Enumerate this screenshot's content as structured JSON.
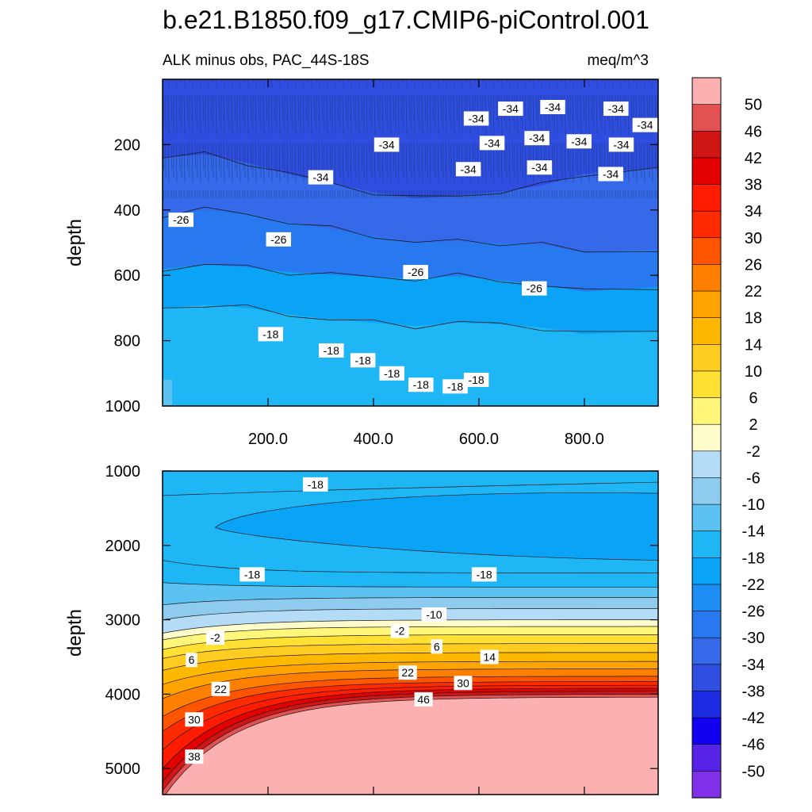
{
  "figure": {
    "title": "b.e21.B1850.f09_g17.CMIP6-piControl.001",
    "subtitle_left": "ALK minus obs, PAC_44S-18S",
    "subtitle_right": "meq/m^3"
  },
  "chart_data": [
    {
      "type": "contour",
      "panel": "upper",
      "ylabel": "depth",
      "xlabel": "",
      "ylim": [
        1000,
        0
      ],
      "xlim": [
        0,
        940
      ],
      "y_ticks": [
        200,
        400,
        600,
        800,
        1000
      ],
      "x_ticks": [
        "200.0",
        "400.0",
        "600.0",
        "800.0"
      ],
      "x_tick_values": [
        200,
        400,
        600,
        800
      ],
      "contours": [
        {
          "level": -18,
          "depth": [
            700,
            690,
            700,
            720,
            735,
            745,
            755,
            745,
            750,
            760,
            780,
            770
          ]
        },
        {
          "level": -26,
          "depth": [
            580,
            568,
            575,
            590,
            598,
            605,
            610,
            602,
            615,
            630,
            650,
            635
          ]
        },
        {
          "level": -30,
          "depth": [
            415,
            400,
            410,
            438,
            458,
            478,
            500,
            496,
            500,
            505,
            530,
            520
          ]
        },
        {
          "level": -34,
          "depth": [
            240,
            230,
            255,
            290,
            320,
            345,
            365,
            355,
            345,
            325,
            290,
            270
          ]
        }
      ],
      "x_nodes": [
        0,
        80,
        160,
        240,
        320,
        400,
        480,
        560,
        640,
        720,
        800,
        940
      ],
      "contour_labels": [
        {
          "text": "-34",
          "x": 300,
          "y": 300
        },
        {
          "text": "-34",
          "x": 425,
          "y": 200
        },
        {
          "text": "-34",
          "x": 595,
          "y": 120
        },
        {
          "text": "-34",
          "x": 660,
          "y": 90
        },
        {
          "text": "-34",
          "x": 740,
          "y": 85
        },
        {
          "text": "-34",
          "x": 860,
          "y": 90
        },
        {
          "text": "-34",
          "x": 915,
          "y": 140
        },
        {
          "text": "-34",
          "x": 625,
          "y": 195
        },
        {
          "text": "-34",
          "x": 710,
          "y": 180
        },
        {
          "text": "-34",
          "x": 790,
          "y": 190
        },
        {
          "text": "-34",
          "x": 870,
          "y": 200
        },
        {
          "text": "-34",
          "x": 580,
          "y": 275
        },
        {
          "text": "-34",
          "x": 715,
          "y": 270
        },
        {
          "text": "-34",
          "x": 850,
          "y": 290
        },
        {
          "text": "-26",
          "x": 35,
          "y": 430
        },
        {
          "text": "-26",
          "x": 220,
          "y": 490
        },
        {
          "text": "-26",
          "x": 480,
          "y": 590
        },
        {
          "text": "-26",
          "x": 705,
          "y": 640
        },
        {
          "text": "-18",
          "x": 205,
          "y": 780
        },
        {
          "text": "-18",
          "x": 320,
          "y": 830
        },
        {
          "text": "-18",
          "x": 380,
          "y": 860
        },
        {
          "text": "-18",
          "x": 435,
          "y": 900
        },
        {
          "text": "-18",
          "x": 490,
          "y": 935
        },
        {
          "text": "-18",
          "x": 555,
          "y": 940
        },
        {
          "text": "-18",
          "x": 595,
          "y": 920
        }
      ]
    },
    {
      "type": "contour",
      "panel": "lower",
      "ylabel": "depth",
      "xlabel": "",
      "ylim": [
        5350,
        1000
      ],
      "xlim": [
        0,
        940
      ],
      "y_ticks": [
        1000,
        2000,
        3000,
        4000,
        5000
      ],
      "contour_labels": [
        {
          "text": "-18",
          "x": 290,
          "y": 1180
        },
        {
          "text": "-18",
          "x": 170,
          "y": 2390
        },
        {
          "text": "-18",
          "x": 610,
          "y": 2390
        },
        {
          "text": "-10",
          "x": 515,
          "y": 2930
        },
        {
          "text": "-2",
          "x": 100,
          "y": 3240
        },
        {
          "text": "-2",
          "x": 450,
          "y": 3150
        },
        {
          "text": "6",
          "x": 55,
          "y": 3540
        },
        {
          "text": "6",
          "x": 520,
          "y": 3360
        },
        {
          "text": "14",
          "x": 620,
          "y": 3500
        },
        {
          "text": "22",
          "x": 110,
          "y": 3930
        },
        {
          "text": "22",
          "x": 465,
          "y": 3710
        },
        {
          "text": "30",
          "x": 570,
          "y": 3850
        },
        {
          "text": "30",
          "x": 60,
          "y": 4340
        },
        {
          "text": "38",
          "x": 60,
          "y": 4840
        },
        {
          "text": "46",
          "x": 495,
          "y": 4070
        }
      ]
    }
  ],
  "colorbar": {
    "labels": [
      "50",
      "46",
      "42",
      "38",
      "34",
      "30",
      "26",
      "22",
      "18",
      "14",
      "10",
      "6",
      "2",
      "-2",
      "-6",
      "-10",
      "-14",
      "-18",
      "-22",
      "-26",
      "-30",
      "-34",
      "-38",
      "-42",
      "-46",
      "-50"
    ],
    "colors": [
      "#fcb0b0",
      "#e35252",
      "#d01515",
      "#e30000",
      "#ff1c00",
      "#ff2a00",
      "#ff5500",
      "#ff8000",
      "#ffa400",
      "#ffb800",
      "#ffcc22",
      "#ffe033",
      "#fff67a",
      "#fffccc",
      "#b4dcf6",
      "#8ecbef",
      "#5cc2f2",
      "#1eb6f5",
      "#0aa3f5",
      "#1e8ef4",
      "#2878f0",
      "#3569e9",
      "#2f4ee0",
      "#1d2be3",
      "#1200f0",
      "#5623e7",
      "#8030e8"
    ]
  }
}
